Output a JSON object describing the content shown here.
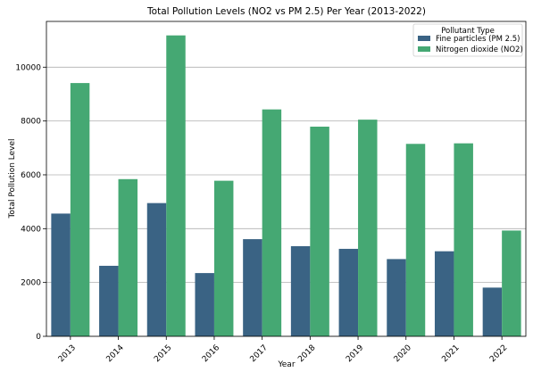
{
  "chart_data": {
    "type": "bar",
    "title": "Total Pollution Levels (NO2 vs PM 2.5) Per Year (2013-2022)",
    "xlabel": "Year",
    "ylabel": "Total Pollution Level",
    "ylim": [
      0,
      11700
    ],
    "yticks": [
      0,
      2000,
      4000,
      6000,
      8000,
      10000
    ],
    "grid": "horizontal",
    "legend_title": "Pollutant Type",
    "legend_position": "top-right",
    "categories": [
      "2013",
      "2014",
      "2015",
      "2016",
      "2017",
      "2018",
      "2019",
      "2020",
      "2021",
      "2022"
    ],
    "series": [
      {
        "name": "Fine particles (PM 2.5)",
        "color": "#3a6384",
        "values": [
          4560,
          2620,
          4950,
          2350,
          3610,
          3350,
          3250,
          2870,
          3160,
          1810
        ]
      },
      {
        "name": "Nitrogen dioxide (NO2)",
        "color": "#45a873",
        "values": [
          9410,
          5840,
          11180,
          5780,
          8430,
          7790,
          8050,
          7150,
          7170,
          3930
        ]
      }
    ]
  }
}
